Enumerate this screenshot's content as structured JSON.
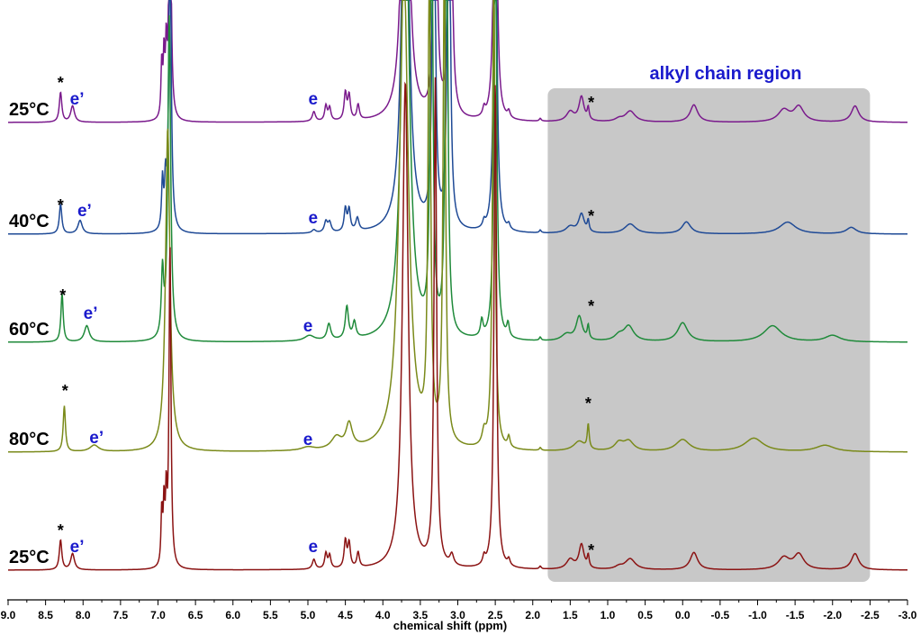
{
  "chart_data": {
    "type": "line",
    "title": "",
    "xlabel": "chemical shift (ppm)",
    "ylabel": "",
    "xlim": [
      9.0,
      -3.0
    ],
    "x_reversed": true,
    "x_ticks": [
      "9.0",
      "8.5",
      "8.0",
      "7.5",
      "7.0",
      "6.5",
      "6.0",
      "5.5",
      "5.0",
      "4.5",
      "4.0",
      "3.5",
      "3.0",
      "2.5",
      "2.0",
      "1.5",
      "1.0",
      "0.5",
      "0.0",
      "-0.5",
      "-1.0",
      "-1.5",
      "-2.0",
      "-2.5",
      "-3.0"
    ],
    "grid": false,
    "legend": "none",
    "region": {
      "label": "alyl chain region",
      "text": "alkyl chain region",
      "from_ppm": 1.8,
      "to_ppm": -2.5,
      "color": "#c8c8c8"
    },
    "annotation_labels": {
      "star": "*",
      "e": "e",
      "e_prime": "e’"
    },
    "series": [
      {
        "name": "25°C",
        "color": "#7a1a8c",
        "temp_factor": 0,
        "peaks": [
          [
            8.3,
            0.02,
            0.55
          ],
          [
            8.14,
            0.03,
            0.3
          ],
          [
            6.95,
            0.012,
            1.0
          ],
          [
            6.92,
            0.012,
            1.1
          ],
          [
            6.89,
            0.012,
            1.2
          ],
          [
            6.84,
            0.015,
            6.0
          ],
          [
            4.92,
            0.025,
            0.18
          ],
          [
            4.76,
            0.02,
            0.28
          ],
          [
            4.71,
            0.02,
            0.24
          ],
          [
            4.5,
            0.02,
            0.5
          ],
          [
            4.45,
            0.02,
            0.45
          ],
          [
            4.33,
            0.02,
            0.28
          ],
          [
            3.7,
            0.045,
            9.0
          ],
          [
            3.3,
            0.02,
            9.0
          ],
          [
            3.1,
            0.02,
            9.0
          ],
          [
            2.5,
            0.02,
            9.0
          ],
          [
            2.65,
            0.02,
            0.15
          ],
          [
            2.32,
            0.02,
            0.12
          ],
          [
            1.9,
            0.015,
            0.05
          ],
          [
            1.5,
            0.06,
            0.18
          ],
          [
            1.35,
            0.04,
            0.45
          ],
          [
            1.26,
            0.015,
            0.22
          ],
          [
            0.85,
            0.06,
            0.05
          ],
          [
            0.7,
            0.08,
            0.2
          ],
          [
            -0.15,
            0.06,
            0.32
          ],
          [
            -1.35,
            0.09,
            0.22
          ],
          [
            -1.55,
            0.08,
            0.28
          ],
          [
            -2.3,
            0.06,
            0.3
          ]
        ]
      },
      {
        "name": "40°C",
        "color": "#1f4a96",
        "temp_factor": 0.25,
        "peaks": [
          [
            8.3,
            0.02,
            0.55
          ],
          [
            8.04,
            0.035,
            0.25
          ],
          [
            6.94,
            0.014,
            0.9
          ],
          [
            6.9,
            0.014,
            0.8
          ],
          [
            6.84,
            0.018,
            6.0
          ],
          [
            4.92,
            0.03,
            0.06
          ],
          [
            4.76,
            0.025,
            0.2
          ],
          [
            4.71,
            0.025,
            0.18
          ],
          [
            4.5,
            0.02,
            0.42
          ],
          [
            4.45,
            0.02,
            0.4
          ],
          [
            4.34,
            0.025,
            0.24
          ],
          [
            3.7,
            0.05,
            9.0
          ],
          [
            3.32,
            0.02,
            9.0
          ],
          [
            3.12,
            0.02,
            9.0
          ],
          [
            2.5,
            0.02,
            9.0
          ],
          [
            2.65,
            0.02,
            0.12
          ],
          [
            2.32,
            0.02,
            0.1
          ],
          [
            1.9,
            0.015,
            0.05
          ],
          [
            1.5,
            0.07,
            0.12
          ],
          [
            1.35,
            0.045,
            0.35
          ],
          [
            1.26,
            0.015,
            0.2
          ],
          [
            0.7,
            0.09,
            0.18
          ],
          [
            -0.05,
            0.07,
            0.22
          ],
          [
            -1.4,
            0.13,
            0.22
          ],
          [
            -2.25,
            0.08,
            0.12
          ]
        ]
      },
      {
        "name": "60°C",
        "color": "#1f8a3a",
        "temp_factor": 0.55,
        "peaks": [
          [
            8.28,
            0.018,
            0.9
          ],
          [
            7.95,
            0.04,
            0.3
          ],
          [
            6.94,
            0.018,
            1.2
          ],
          [
            6.85,
            0.022,
            6.0
          ],
          [
            4.98,
            0.08,
            0.1
          ],
          [
            4.72,
            0.03,
            0.3
          ],
          [
            4.48,
            0.025,
            0.6
          ],
          [
            4.38,
            0.025,
            0.3
          ],
          [
            3.7,
            0.06,
            9.0
          ],
          [
            3.35,
            0.02,
            9.0
          ],
          [
            3.15,
            0.02,
            9.0
          ],
          [
            2.5,
            0.02,
            9.0
          ],
          [
            2.68,
            0.02,
            0.3
          ],
          [
            2.33,
            0.02,
            0.25
          ],
          [
            1.9,
            0.015,
            0.06
          ],
          [
            1.55,
            0.08,
            0.12
          ],
          [
            1.38,
            0.05,
            0.45
          ],
          [
            1.26,
            0.015,
            0.25
          ],
          [
            0.85,
            0.07,
            0.1
          ],
          [
            0.72,
            0.08,
            0.28
          ],
          [
            0.0,
            0.08,
            0.35
          ],
          [
            -1.2,
            0.14,
            0.3
          ],
          [
            -2.0,
            0.12,
            0.12
          ]
        ]
      },
      {
        "name": "80°C",
        "color": "#7a8a1a",
        "temp_factor": 0.8,
        "peaks": [
          [
            8.25,
            0.018,
            0.85
          ],
          [
            7.85,
            0.07,
            0.12
          ],
          [
            6.87,
            0.035,
            6.0
          ],
          [
            5.0,
            0.1,
            0.06
          ],
          [
            4.62,
            0.08,
            0.22
          ],
          [
            4.45,
            0.05,
            0.45
          ],
          [
            3.72,
            0.07,
            9.0
          ],
          [
            3.38,
            0.02,
            9.0
          ],
          [
            3.18,
            0.02,
            9.0
          ],
          [
            2.52,
            0.02,
            9.0
          ],
          [
            2.65,
            0.03,
            0.25
          ],
          [
            2.32,
            0.02,
            0.2
          ],
          [
            1.9,
            0.015,
            0.05
          ],
          [
            1.38,
            0.09,
            0.18
          ],
          [
            1.26,
            0.015,
            0.45
          ],
          [
            0.85,
            0.07,
            0.15
          ],
          [
            0.72,
            0.08,
            0.18
          ],
          [
            0.0,
            0.11,
            0.22
          ],
          [
            -0.95,
            0.15,
            0.25
          ],
          [
            -1.9,
            0.15,
            0.12
          ]
        ]
      },
      {
        "name": "25°C",
        "color": "#8b1313",
        "temp_factor": 0,
        "peaks": [
          [
            8.3,
            0.02,
            0.55
          ],
          [
            8.14,
            0.03,
            0.3
          ],
          [
            6.95,
            0.012,
            1.0
          ],
          [
            6.92,
            0.012,
            1.1
          ],
          [
            6.89,
            0.012,
            1.2
          ],
          [
            6.84,
            0.015,
            6.0
          ],
          [
            4.92,
            0.025,
            0.18
          ],
          [
            4.76,
            0.02,
            0.28
          ],
          [
            4.71,
            0.02,
            0.24
          ],
          [
            4.5,
            0.02,
            0.5
          ],
          [
            4.45,
            0.02,
            0.45
          ],
          [
            4.33,
            0.02,
            0.28
          ],
          [
            3.7,
            0.045,
            9.0
          ],
          [
            3.3,
            0.02,
            9.0
          ],
          [
            3.08,
            0.03,
            0.2
          ],
          [
            2.5,
            0.02,
            9.0
          ],
          [
            2.65,
            0.02,
            0.15
          ],
          [
            2.32,
            0.02,
            0.12
          ],
          [
            1.9,
            0.015,
            0.05
          ],
          [
            1.5,
            0.06,
            0.18
          ],
          [
            1.35,
            0.04,
            0.45
          ],
          [
            1.26,
            0.015,
            0.22
          ],
          [
            0.85,
            0.06,
            0.05
          ],
          [
            0.7,
            0.08,
            0.2
          ],
          [
            -0.15,
            0.06,
            0.32
          ],
          [
            -1.35,
            0.09,
            0.22
          ],
          [
            -1.55,
            0.08,
            0.28
          ],
          [
            -2.3,
            0.06,
            0.3
          ]
        ]
      }
    ]
  }
}
